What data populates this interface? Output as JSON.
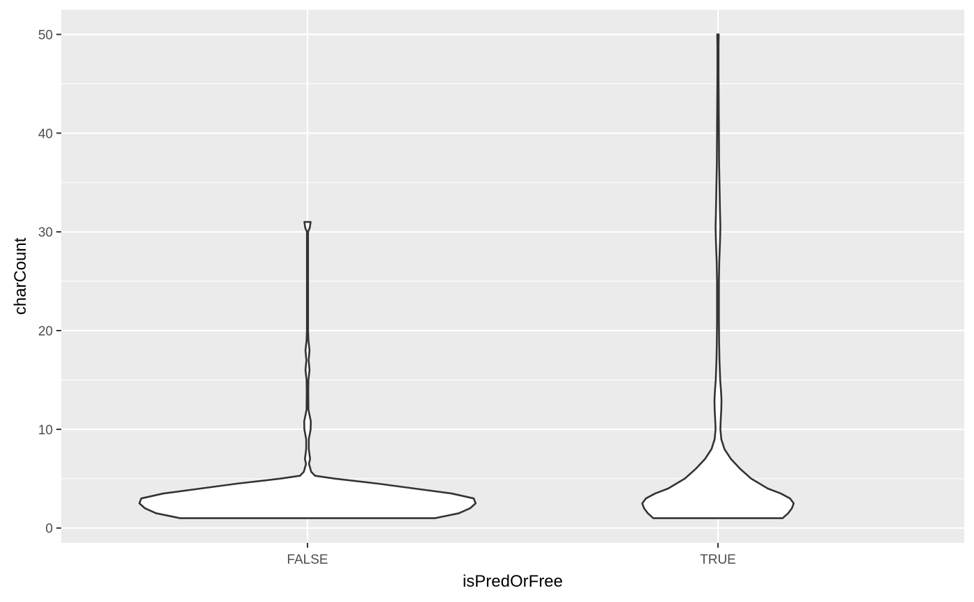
{
  "chart_data": {
    "type": "violin",
    "xlabel": "isPredOrFree",
    "ylabel": "charCount",
    "categories": [
      "FALSE",
      "TRUE"
    ],
    "ylim": [
      -1.5,
      52.5
    ],
    "yticks": [
      0,
      10,
      20,
      30,
      40,
      50
    ],
    "grid": true,
    "legend": "none",
    "series": [
      {
        "category": "FALSE",
        "range": [
          1,
          31
        ],
        "relative_width_profile": [
          [
            1,
            0.69
          ],
          [
            1.5,
            0.82
          ],
          [
            2,
            0.88
          ],
          [
            2.5,
            0.91
          ],
          [
            3,
            0.9
          ],
          [
            3.5,
            0.78
          ],
          [
            4,
            0.58
          ],
          [
            4.5,
            0.38
          ],
          [
            5,
            0.15
          ],
          [
            5.3,
            0.04
          ],
          [
            5.7,
            0.02
          ],
          [
            6.5,
            0.008
          ],
          [
            7,
            0.014
          ],
          [
            8,
            0.007
          ],
          [
            9,
            0.007
          ],
          [
            10,
            0.017
          ],
          [
            10.8,
            0.018
          ],
          [
            12,
            0.005
          ],
          [
            14,
            0.004
          ],
          [
            15,
            0.005
          ],
          [
            16,
            0.011
          ],
          [
            17,
            0.006
          ],
          [
            18,
            0.011
          ],
          [
            19,
            0.005
          ],
          [
            20,
            0.003
          ],
          [
            25,
            0.003
          ],
          [
            30,
            0.003
          ],
          [
            30.4,
            0.012
          ],
          [
            31,
            0.017
          ]
        ]
      },
      {
        "category": "TRUE",
        "range": [
          1,
          50
        ],
        "relative_width_profile": [
          [
            1,
            0.35
          ],
          [
            1.5,
            0.38
          ],
          [
            2,
            0.4
          ],
          [
            2.5,
            0.41
          ],
          [
            3,
            0.39
          ],
          [
            3.5,
            0.34
          ],
          [
            4,
            0.27
          ],
          [
            5,
            0.18
          ],
          [
            6,
            0.12
          ],
          [
            7,
            0.07
          ],
          [
            8,
            0.035
          ],
          [
            9,
            0.018
          ],
          [
            10,
            0.013
          ],
          [
            11,
            0.015
          ],
          [
            12,
            0.018
          ],
          [
            13,
            0.019
          ],
          [
            14,
            0.016
          ],
          [
            15,
            0.012
          ],
          [
            17,
            0.008
          ],
          [
            19,
            0.006
          ],
          [
            21,
            0.005
          ],
          [
            23,
            0.005
          ],
          [
            25,
            0.005
          ],
          [
            27,
            0.007
          ],
          [
            29,
            0.011
          ],
          [
            30.5,
            0.013
          ],
          [
            32,
            0.011
          ],
          [
            34,
            0.009
          ],
          [
            37,
            0.006
          ],
          [
            40,
            0.005
          ],
          [
            43,
            0.004
          ],
          [
            46,
            0.003
          ],
          [
            49,
            0.003
          ],
          [
            50,
            0.004
          ]
        ]
      }
    ],
    "colors": {
      "panel": "#ebebeb",
      "grid": "#ffffff",
      "violin_fill": "#ffffff",
      "violin_stroke": "#333333",
      "tick": "#333333"
    }
  }
}
